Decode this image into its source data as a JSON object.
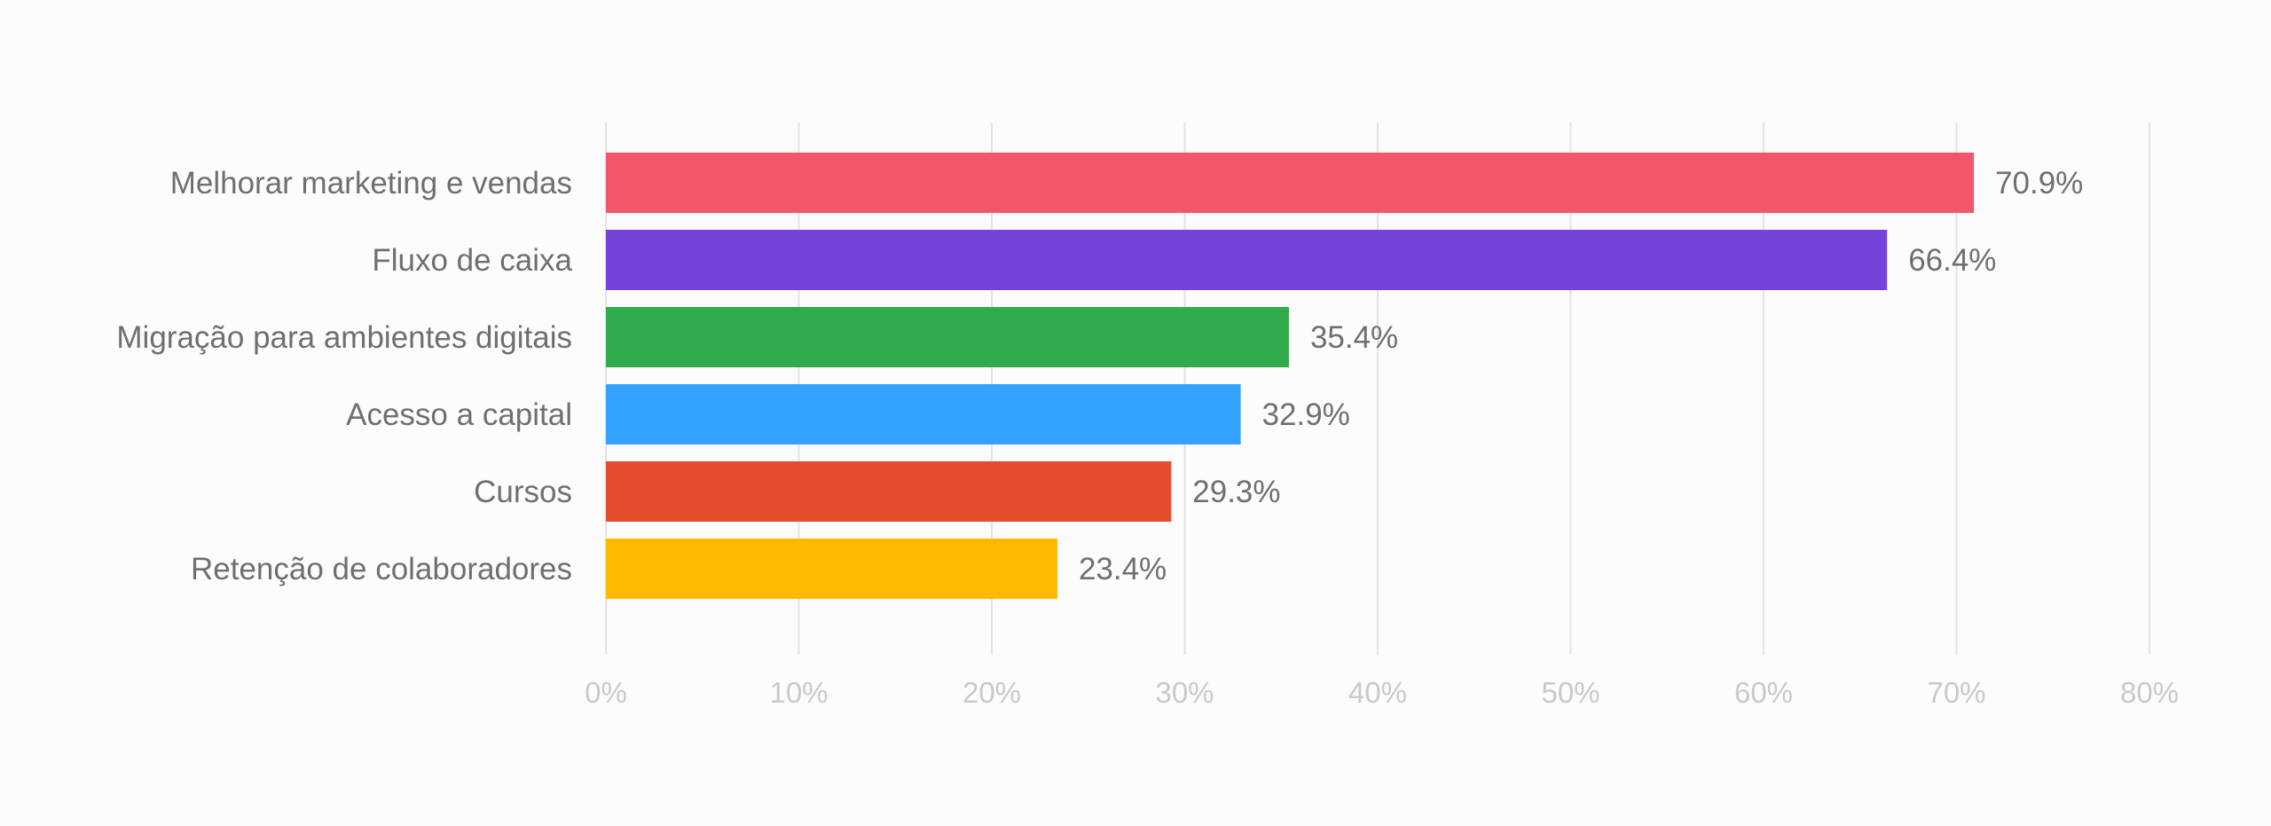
{
  "chart_data": {
    "type": "bar",
    "orientation": "horizontal",
    "categories": [
      "Melhorar marketing e vendas",
      "Fluxo de caixa",
      "Migração para ambientes digitais",
      "Acesso a capital",
      "Cursos",
      "Retenção de colaboradores"
    ],
    "values": [
      70.9,
      66.4,
      35.4,
      32.9,
      29.3,
      23.4
    ],
    "value_labels": [
      "70.9%",
      "66.4%",
      "35.4%",
      "32.9%",
      "29.3%",
      "23.4%"
    ],
    "colors": [
      "#f2566a",
      "#7443d9",
      "#32ab4e",
      "#33a2fd",
      "#e54c2e",
      "#ffba00"
    ],
    "xlim": [
      0,
      80
    ],
    "x_ticks": [
      0,
      10,
      20,
      30,
      40,
      50,
      60,
      70,
      80
    ],
    "x_tick_labels": [
      "0%",
      "10%",
      "20%",
      "30%",
      "40%",
      "50%",
      "60%",
      "70%",
      "80%"
    ],
    "grid": true,
    "legend": "none"
  }
}
